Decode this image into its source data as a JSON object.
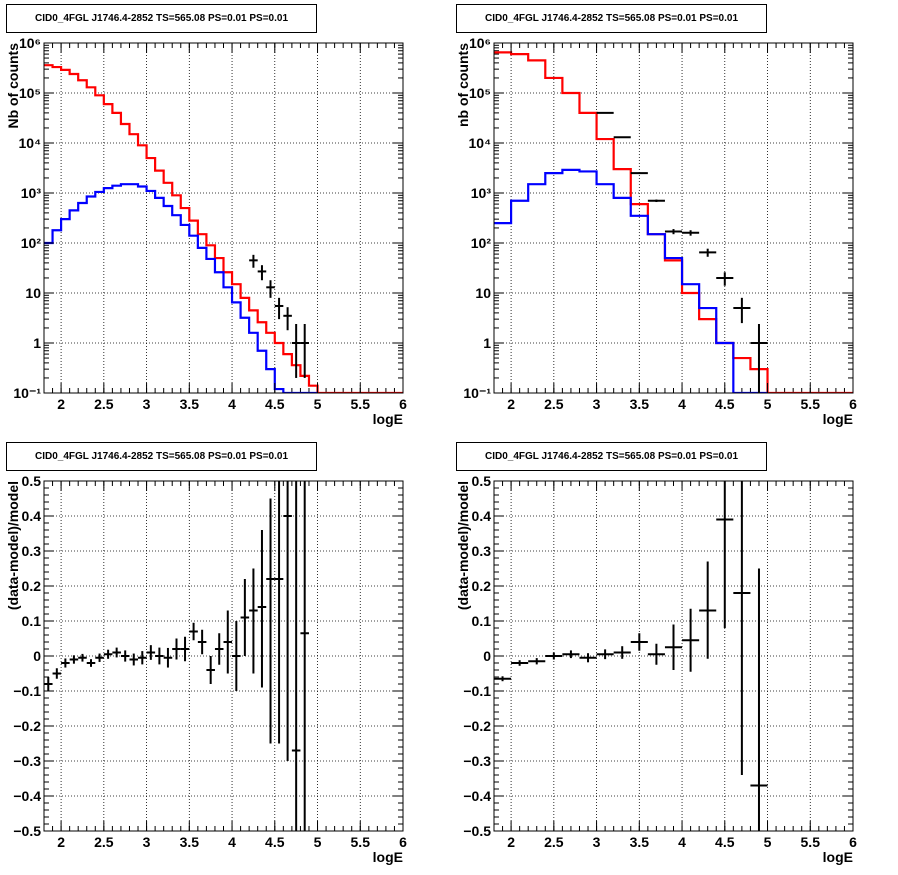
{
  "chart_data": [
    {
      "id": "top-left",
      "type": "histogram",
      "title": "CID0_4FGL J1746.4-2852 TS=565.08 PS=0.01 PS=0.01",
      "xlabel": "logE",
      "ylabel": "Nb of counts",
      "xlim": [
        1.8,
        6
      ],
      "ylim": [
        0.1,
        1000000
      ],
      "yscale": "log",
      "grid": true,
      "xticks": [
        2,
        2.5,
        3,
        3.5,
        4,
        4.5,
        5,
        5.5,
        6
      ],
      "xtick_labels": [
        "2",
        "2.5",
        "3",
        "3.5",
        "4",
        "4.5",
        "5",
        "5.5",
        "6"
      ],
      "yticks": [
        0.1,
        1,
        10,
        100,
        1000,
        10000,
        100000,
        1000000
      ],
      "ytick_labels": [
        "10⁻¹",
        "1",
        "10",
        "10²",
        "10³",
        "10⁴",
        "10⁵",
        "10⁶"
      ],
      "series": [
        {
          "color": "#ff0000",
          "kind": "step",
          "bin_edges": [
            1.8,
            1.9,
            2.0,
            2.1,
            2.2,
            2.3,
            2.4,
            2.5,
            2.6,
            2.7,
            2.8,
            2.9,
            3.0,
            3.1,
            3.2,
            3.3,
            3.4,
            3.5,
            3.6,
            3.7,
            3.8,
            3.9,
            4.0,
            4.1,
            4.2,
            4.3,
            4.4,
            4.5,
            4.6,
            4.7,
            4.8,
            4.9,
            5.0,
            5.1,
            5.2,
            5.3,
            5.4,
            5.5,
            5.6,
            5.7,
            5.8,
            5.9,
            6.0
          ],
          "values": [
            360000,
            330000,
            290000,
            240000,
            180000,
            130000,
            90000,
            60000,
            40000,
            24000,
            15000,
            9000,
            5000,
            2800,
            1600,
            900,
            500,
            280,
            150,
            90,
            50,
            26,
            15,
            8,
            4.5,
            2.6,
            1.6,
            1.0,
            0.6,
            0.36,
            0.22,
            0.14,
            0.1,
            0.1,
            0.1,
            0.1,
            0.1,
            0.1,
            0.1,
            0.1,
            0.1,
            0.1
          ]
        },
        {
          "color": "#0000ff",
          "kind": "step",
          "bin_edges": [
            1.8,
            1.9,
            2.0,
            2.1,
            2.2,
            2.3,
            2.4,
            2.5,
            2.6,
            2.7,
            2.8,
            2.9,
            3.0,
            3.1,
            3.2,
            3.3,
            3.4,
            3.5,
            3.6,
            3.7,
            3.8,
            3.9,
            4.0,
            4.1,
            4.2,
            4.3,
            4.4,
            4.5,
            4.6,
            4.7,
            4.8,
            4.9,
            5.0
          ],
          "values": [
            100,
            180,
            300,
            450,
            630,
            850,
            1050,
            1250,
            1400,
            1500,
            1500,
            1350,
            1100,
            800,
            550,
            360,
            230,
            140,
            80,
            48,
            26,
            13,
            6.5,
            3.2,
            1.6,
            0.7,
            0.3,
            0.12,
            0.1,
            0.1,
            0.1,
            0.1
          ]
        },
        {
          "color": "#000000",
          "kind": "points",
          "x": [
            4.25,
            4.35,
            4.45,
            4.55,
            4.65,
            4.75,
            4.85
          ],
          "y": [
            45,
            27,
            13,
            5.5,
            3.5,
            1.0,
            1.0
          ],
          "xerr": [
            0.05,
            0.05,
            0.05,
            0.05,
            0.05,
            0.05,
            0.05
          ],
          "ylo": [
            32,
            18,
            8,
            3,
            1.8,
            0.2,
            0.2
          ],
          "yhi": [
            58,
            36,
            18,
            8,
            5.2,
            2.4,
            2.4
          ]
        }
      ]
    },
    {
      "id": "top-right",
      "type": "histogram",
      "title": "CID0_4FGL J1746.4-2852 TS=565.08 PS=0.01 PS=0.01",
      "xlabel": "logE",
      "ylabel": "nb of counts",
      "xlim": [
        1.8,
        6
      ],
      "ylim": [
        0.1,
        1000000
      ],
      "yscale": "log",
      "grid": true,
      "xticks": [
        2,
        2.5,
        3,
        3.5,
        4,
        4.5,
        5,
        5.5,
        6
      ],
      "xtick_labels": [
        "2",
        "2.5",
        "3",
        "3.5",
        "4",
        "4.5",
        "5",
        "5.5",
        "6"
      ],
      "yticks": [
        0.1,
        1,
        10,
        100,
        1000,
        10000,
        100000,
        1000000
      ],
      "ytick_labels": [
        "10⁻¹",
        "1",
        "10",
        "10²",
        "10³",
        "10⁴",
        "10⁵",
        "10⁶"
      ],
      "series": [
        {
          "color": "#ff0000",
          "kind": "step",
          "bin_edges": [
            1.8,
            2.0,
            2.2,
            2.4,
            2.6,
            2.8,
            3.0,
            3.2,
            3.4,
            3.6,
            3.8,
            4.0,
            4.2,
            4.4,
            4.6,
            4.8,
            5.0,
            5.2,
            5.4,
            5.6,
            5.8,
            6.0
          ],
          "values": [
            650000,
            600000,
            450000,
            200000,
            100000,
            40000,
            12000,
            3000,
            600,
            150,
            45,
            10,
            3,
            1,
            0.5,
            0.3,
            0.1,
            0.1,
            0.1,
            0.1,
            0.1
          ]
        },
        {
          "color": "#0000ff",
          "kind": "step",
          "bin_edges": [
            1.8,
            2.0,
            2.2,
            2.4,
            2.6,
            2.8,
            3.0,
            3.2,
            3.4,
            3.6,
            3.8,
            4.0,
            4.2,
            4.4,
            4.6,
            4.8,
            5.0
          ],
          "values": [
            250,
            700,
            1500,
            2500,
            2900,
            2700,
            1500,
            800,
            350,
            150,
            50,
            15,
            5,
            1,
            0.1,
            0.1
          ]
        },
        {
          "color": "#000000",
          "kind": "points",
          "x": [
            3.1,
            3.3,
            3.5,
            3.7,
            3.9,
            4.1,
            4.3,
            4.5,
            4.7,
            4.9
          ],
          "y": [
            40000,
            13000,
            2500,
            700,
            170,
            160,
            65,
            20,
            5,
            1.0
          ],
          "xerr": [
            0.1,
            0.1,
            0.1,
            0.1,
            0.1,
            0.1,
            0.1,
            0.1,
            0.1,
            0.1
          ],
          "ylo": [
            39500,
            12800,
            2400,
            660,
            150,
            140,
            53,
            14,
            2.5,
            0.1
          ],
          "yhi": [
            40500,
            13200,
            2600,
            740,
            190,
            180,
            77,
            26,
            8,
            2.4
          ]
        }
      ]
    },
    {
      "id": "bottom-left",
      "type": "scatter",
      "title": "CID0_4FGL J1746.4-2852 TS=565.08 PS=0.01 PS=0.01",
      "xlabel": "logE",
      "ylabel": "(data-model)/model",
      "xlim": [
        1.8,
        6
      ],
      "ylim": [
        -0.5,
        0.5
      ],
      "yscale": "linear",
      "grid": true,
      "xticks": [
        2,
        2.5,
        3,
        3.5,
        4,
        4.5,
        5,
        5.5,
        6
      ],
      "xtick_labels": [
        "2",
        "2.5",
        "3",
        "3.5",
        "4",
        "4.5",
        "5",
        "5.5",
        "6"
      ],
      "yticks": [
        -0.5,
        -0.4,
        -0.3,
        -0.2,
        -0.1,
        0,
        0.1,
        0.2,
        0.3,
        0.4,
        0.5
      ],
      "ytick_labels": [
        "−0.5",
        "−0.4",
        "−0.3",
        "−0.2",
        "−0.1",
        "0",
        "0.1",
        "0.2",
        "0.3",
        "0.4",
        "0.5"
      ],
      "series": [
        {
          "color": "#000000",
          "kind": "points",
          "x": [
            1.85,
            1.95,
            2.05,
            2.15,
            2.25,
            2.35,
            2.45,
            2.55,
            2.65,
            2.75,
            2.85,
            2.95,
            3.05,
            3.15,
            3.25,
            3.35,
            3.45,
            3.55,
            3.65,
            3.75,
            3.85,
            3.95,
            4.05,
            4.15,
            4.25,
            4.35,
            4.45,
            4.55,
            4.65,
            4.75,
            4.85
          ],
          "y": [
            -0.08,
            -0.05,
            -0.02,
            -0.01,
            -0.005,
            -0.02,
            -0.005,
            0.005,
            0.01,
            0.0,
            -0.01,
            -0.005,
            0.01,
            0.0,
            -0.005,
            0.02,
            0.02,
            0.07,
            0.04,
            -0.04,
            0.02,
            0.04,
            0.0,
            0.11,
            0.13,
            0.14,
            0.22,
            0.22,
            0.4,
            -0.27,
            0.065
          ],
          "xerr": [
            0.05,
            0.05,
            0.05,
            0.05,
            0.05,
            0.05,
            0.05,
            0.05,
            0.05,
            0.05,
            0.05,
            0.05,
            0.05,
            0.05,
            0.05,
            0.05,
            0.05,
            0.05,
            0.05,
            0.05,
            0.05,
            0.05,
            0.05,
            0.05,
            0.05,
            0.05,
            0.05,
            0.05,
            0.05,
            0.05,
            0.05
          ],
          "ylo": [
            -0.1,
            -0.065,
            -0.033,
            -0.022,
            -0.016,
            -0.031,
            -0.017,
            -0.008,
            -0.004,
            -0.016,
            -0.027,
            -0.024,
            -0.011,
            -0.024,
            -0.033,
            -0.01,
            -0.015,
            0.045,
            0.005,
            -0.08,
            -0.025,
            -0.05,
            -0.1,
            0.0,
            -0.05,
            -0.09,
            -0.25,
            -0.25,
            -0.3,
            -0.5,
            -0.5
          ],
          "yhi": [
            -0.06,
            -0.035,
            -0.007,
            0.002,
            0.006,
            -0.009,
            0.007,
            0.018,
            0.024,
            0.016,
            0.007,
            0.014,
            0.031,
            0.024,
            0.023,
            0.05,
            0.055,
            0.095,
            0.075,
            0.0,
            0.065,
            0.13,
            0.1,
            0.22,
            0.25,
            0.36,
            0.45,
            0.5,
            0.5,
            0.5,
            0.5
          ]
        }
      ]
    },
    {
      "id": "bottom-right",
      "type": "scatter",
      "title": "CID0_4FGL J1746.4-2852 TS=565.08 PS=0.01 PS=0.01",
      "xlabel": "logE",
      "ylabel": "(data-model)/model",
      "xlim": [
        1.8,
        6
      ],
      "ylim": [
        -0.5,
        0.5
      ],
      "yscale": "linear",
      "grid": true,
      "xticks": [
        2,
        2.5,
        3,
        3.5,
        4,
        4.5,
        5,
        5.5,
        6
      ],
      "xtick_labels": [
        "2",
        "2.5",
        "3",
        "3.5",
        "4",
        "4.5",
        "5",
        "5.5",
        "6"
      ],
      "yticks": [
        -0.5,
        -0.4,
        -0.3,
        -0.2,
        -0.1,
        0,
        0.1,
        0.2,
        0.3,
        0.4,
        0.5
      ],
      "ytick_labels": [
        "−0.5",
        "−0.4",
        "−0.3",
        "−0.2",
        "−0.1",
        "0",
        "0.1",
        "0.2",
        "0.3",
        "0.4",
        "0.5"
      ],
      "series": [
        {
          "color": "#000000",
          "kind": "points",
          "x": [
            1.9,
            2.1,
            2.3,
            2.5,
            2.7,
            2.9,
            3.1,
            3.3,
            3.5,
            3.7,
            3.9,
            4.1,
            4.3,
            4.5,
            4.7,
            4.9
          ],
          "y": [
            -0.065,
            -0.02,
            -0.015,
            0.0,
            0.005,
            -0.005,
            0.005,
            0.01,
            0.04,
            0.005,
            0.025,
            0.045,
            0.13,
            0.39,
            0.18,
            -0.37
          ],
          "xerr": [
            0.1,
            0.1,
            0.1,
            0.1,
            0.1,
            0.1,
            0.1,
            0.1,
            0.1,
            0.1,
            0.1,
            0.1,
            0.1,
            0.1,
            0.1,
            0.1
          ],
          "ylo": [
            -0.072,
            -0.028,
            -0.024,
            -0.01,
            -0.006,
            -0.018,
            -0.009,
            -0.008,
            0.015,
            -0.025,
            -0.04,
            -0.045,
            -0.008,
            0.08,
            -0.34,
            -0.5
          ],
          "yhi": [
            -0.058,
            -0.012,
            -0.006,
            0.01,
            0.016,
            0.008,
            0.019,
            0.028,
            0.065,
            0.035,
            0.09,
            0.135,
            0.27,
            0.5,
            0.5,
            0.25
          ]
        }
      ]
    }
  ]
}
